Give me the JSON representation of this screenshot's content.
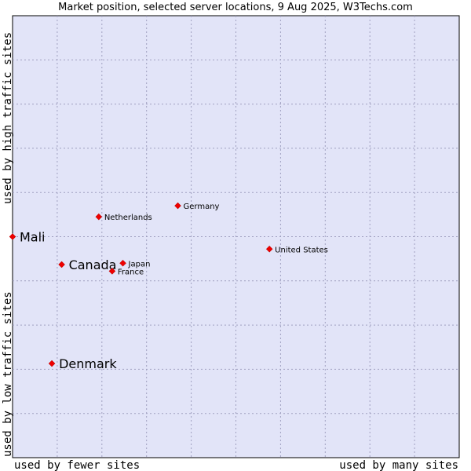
{
  "chart_data": {
    "type": "scatter",
    "title": "Market position, selected server locations, 9 Aug 2025, W3Techs.com",
    "xlabel_left": "used by fewer sites",
    "xlabel_right": "used by many sites",
    "ylabel_bottom": "used by low traffic sites",
    "ylabel_top": "used by high traffic sites",
    "xlim": [
      0,
      10
    ],
    "ylim": [
      0,
      10
    ],
    "grid": true,
    "points": [
      {
        "name": "Mali",
        "x": 0.0,
        "y": 5.0,
        "highlight": true
      },
      {
        "name": "Canada",
        "x": 1.1,
        "y": 4.37,
        "highlight": true
      },
      {
        "name": "Denmark",
        "x": 0.88,
        "y": 2.13,
        "highlight": true
      },
      {
        "name": "Netherlands",
        "x": 1.93,
        "y": 5.45,
        "highlight": false
      },
      {
        "name": "Germany",
        "x": 3.7,
        "y": 5.7,
        "highlight": false
      },
      {
        "name": "United States",
        "x": 5.75,
        "y": 4.72,
        "highlight": false
      },
      {
        "name": "Japan",
        "x": 2.47,
        "y": 4.4,
        "highlight": false
      },
      {
        "name": "France",
        "x": 2.23,
        "y": 4.22,
        "highlight": false
      }
    ]
  },
  "colors": {
    "plot_bg": "#e2e4f8",
    "grid": "#a0a0c0",
    "marker": "#ee0000",
    "border": "#000000"
  }
}
